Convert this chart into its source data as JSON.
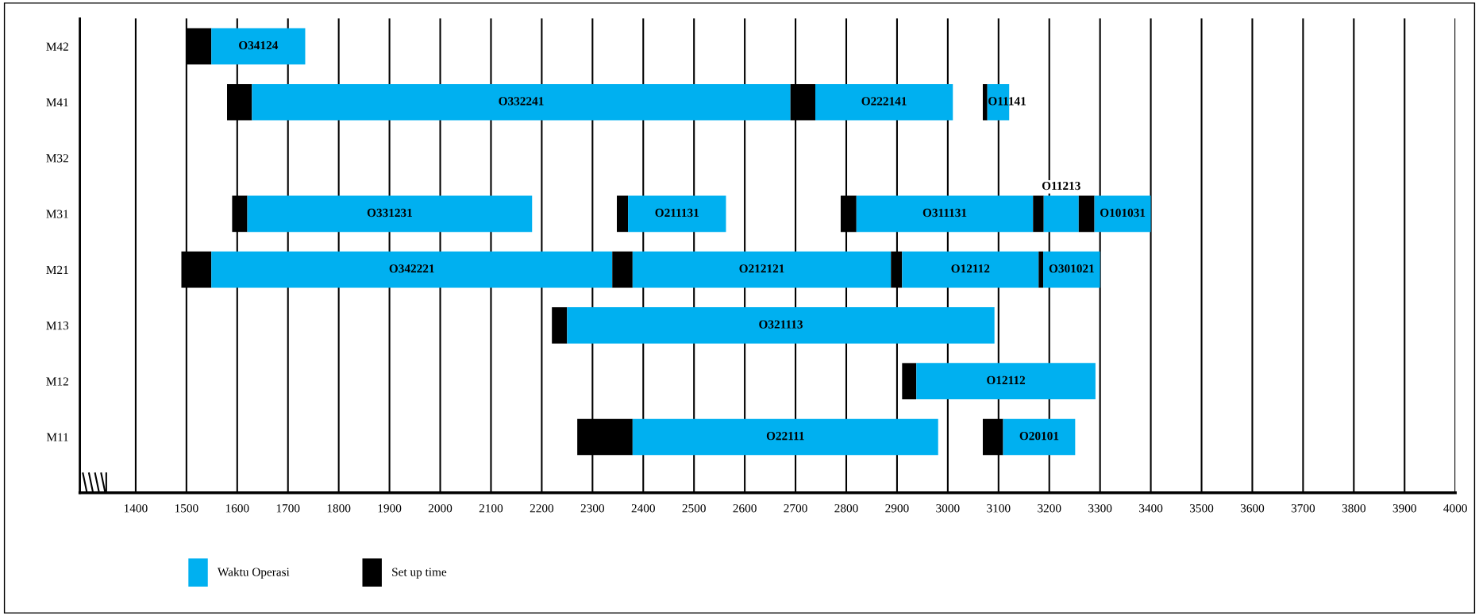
{
  "chart_data": {
    "type": "bar",
    "orientation": "horizontal",
    "categories": [
      "M42",
      "M41",
      "M32",
      "M31",
      "M21",
      "M13",
      "M12",
      "M11"
    ],
    "series": [
      {
        "name": "Set up time",
        "color": "#000000",
        "base": [
          1500,
          1580,
          null,
          1590,
          1490,
          2220,
          2910,
          2270
        ],
        "values": [
          49,
          49,
          null,
          30,
          59,
          30,
          28,
          109
        ]
      },
      {
        "name": "Waktu Operasi",
        "color": "#00b0f0",
        "base": [
          1549,
          1629,
          null,
          1620,
          1549,
          2250,
          2938,
          2379
        ],
        "values": [
          185,
          1061,
          null,
          561,
          790,
          842,
          353,
          602
        ],
        "value_labels": [
          "O34124",
          "O332241",
          null,
          "O331231",
          "O342221",
          "O321113",
          "O12112",
          "O22111"
        ]
      },
      {
        "color": "#000000",
        "base": [
          null,
          2690,
          null,
          2348,
          2339,
          null,
          null,
          3069
        ],
        "values": [
          null,
          49,
          null,
          22,
          40,
          null,
          null,
          40
        ]
      },
      {
        "color": "#00b0f0",
        "base": [
          null,
          2739,
          null,
          2370,
          2379,
          null,
          null,
          3109
        ],
        "values": [
          null,
          271,
          null,
          193,
          509,
          null,
          null,
          142
        ],
        "value_labels": [
          null,
          "O222141",
          null,
          "O211131",
          "O212121",
          null,
          null,
          "O20101"
        ]
      },
      {
        "color": "#000000",
        "base": [
          null,
          3069,
          null,
          2789,
          2888,
          null,
          null,
          null
        ],
        "values": [
          null,
          9,
          null,
          31,
          22,
          null,
          null,
          null
        ]
      },
      {
        "color": "#00b0f0",
        "base": [
          null,
          3078,
          null,
          2820,
          2910,
          null,
          null,
          null
        ],
        "values": [
          null,
          43,
          null,
          348,
          269,
          null,
          null,
          null
        ],
        "value_labels": [
          null,
          "O11141",
          null,
          "O311131",
          "O12112",
          null,
          null,
          null
        ]
      },
      {
        "color": "#000000",
        "base": [
          null,
          null,
          null,
          3168,
          3179,
          null,
          null,
          null
        ],
        "values": [
          null,
          null,
          null,
          21,
          9,
          null,
          null,
          null
        ]
      },
      {
        "color": "#00b0f0",
        "base": [
          null,
          null,
          null,
          3189,
          3188,
          null,
          null,
          null
        ],
        "values": [
          null,
          null,
          null,
          69,
          112,
          null,
          null,
          null
        ],
        "value_labels": [
          null,
          null,
          null,
          "O11213",
          "O301021",
          null,
          null,
          null
        ]
      },
      {
        "color": "#000000",
        "base": [
          null,
          null,
          null,
          3258,
          null,
          null,
          null,
          null
        ],
        "values": [
          null,
          null,
          null,
          31,
          null,
          null,
          null,
          null
        ]
      },
      {
        "color": "#00b0f0",
        "base": [
          null,
          null,
          null,
          3289,
          null,
          null,
          null,
          null
        ],
        "values": [
          null,
          null,
          null,
          111,
          null,
          null,
          null,
          null
        ],
        "value_labels": [
          null,
          null,
          null,
          "O101031",
          null,
          null,
          null,
          null
        ]
      }
    ],
    "xlim": [
      1290,
      4000
    ],
    "xticks": [
      1400,
      1500,
      1600,
      1700,
      1800,
      1900,
      2000,
      2100,
      2200,
      2300,
      2400,
      2500,
      2600,
      2700,
      2800,
      2900,
      3000,
      3100,
      3200,
      3300,
      3400,
      3500,
      3600,
      3700,
      3800,
      3900,
      4000
    ],
    "grid": "x",
    "legend": "bottom"
  }
}
